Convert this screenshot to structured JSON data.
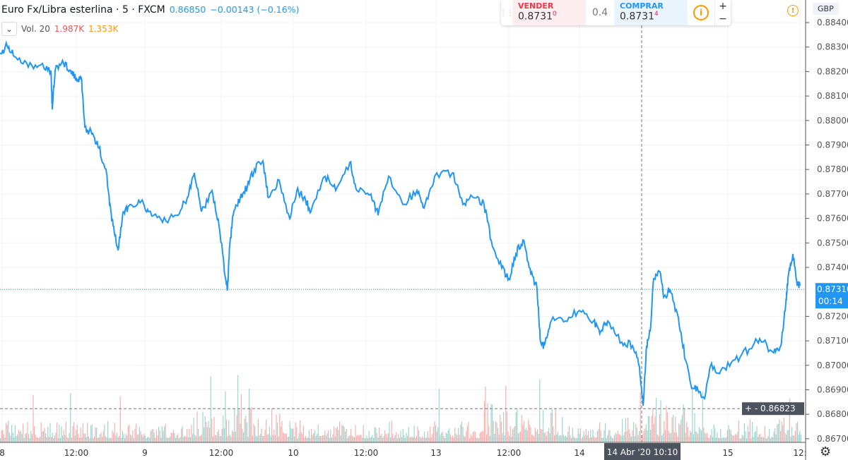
{
  "header": {
    "title": "Euro Fx/Libra esterlina · 5 · FXCM",
    "last": "0.86850",
    "change": "−0.00143 (−0.16%)"
  },
  "volume": {
    "label": "Vol. 20",
    "v1": "1.987K",
    "v2": "1.353K",
    "v1_color": "#ef5350",
    "v2_color": "#ff9800"
  },
  "trade": {
    "sell_label": "VENDER",
    "sell_price": "0.8731",
    "sell_sup": "0",
    "spread": "0.4",
    "buy_label": "COMPRAR",
    "buy_price": "0.8731",
    "buy_sup": "4",
    "plus": "+",
    "minus": "−"
  },
  "currency": "GBP",
  "crosshair": {
    "price": "0.86823",
    "time": "14 Abr '20   10:10"
  },
  "last_price": {
    "price": "0.87310",
    "countdown": "00:14"
  },
  "chart_data": {
    "type": "line",
    "title": "Euro Fx/Libra esterlina · 5 · FXCM",
    "line_color": "#2196f3",
    "ylim": [
      0.8665,
      0.8849
    ],
    "yticks": [
      "0.88400",
      "0.88300",
      "0.88200",
      "0.88100",
      "0.88000",
      "0.87900",
      "0.87800",
      "0.87700",
      "0.87600",
      "0.87500",
      "0.87400",
      "0.87200",
      "0.87100",
      "0.87000",
      "0.86900",
      "0.86800",
      "0.86700"
    ],
    "xlim": [
      0,
      1140
    ],
    "xticks": [
      {
        "t": 3,
        "label": "8"
      },
      {
        "t": 108,
        "label": "12:00"
      },
      {
        "t": 205,
        "label": "9"
      },
      {
        "t": 313,
        "label": "12:00"
      },
      {
        "t": 415,
        "label": "10"
      },
      {
        "t": 518,
        "label": "12:00"
      },
      {
        "t": 617,
        "label": "13"
      },
      {
        "t": 720,
        "label": "12:00"
      },
      {
        "t": 820,
        "label": "14"
      },
      {
        "t": 1030,
        "label": "15"
      },
      {
        "t": 1132,
        "label": "12:"
      }
    ],
    "t": [
      0,
      10,
      20,
      40,
      60,
      72,
      74,
      78,
      90,
      100,
      108,
      115,
      120,
      130,
      140,
      150,
      155,
      160,
      167,
      175,
      185,
      200,
      210,
      230,
      250,
      265,
      275,
      285,
      300,
      310,
      320,
      322,
      325,
      330,
      340,
      350,
      360,
      372,
      380,
      395,
      410,
      420,
      430,
      440,
      460,
      475,
      495,
      505,
      525,
      535,
      550,
      570,
      590,
      600,
      615,
      640,
      655,
      670,
      685,
      695,
      710,
      720,
      730,
      740,
      750,
      760,
      765,
      770,
      780,
      800,
      820,
      840,
      850,
      860,
      880,
      895,
      905,
      910,
      915,
      920,
      925,
      933,
      940,
      948,
      960,
      970,
      980,
      990,
      997,
      1005,
      1020,
      1040,
      1060,
      1075,
      1095,
      1105,
      1112,
      1115,
      1122,
      1128,
      1132
    ],
    "price": [
      0.88276,
      0.88305,
      0.88262,
      0.88218,
      0.88233,
      0.88204,
      0.88045,
      0.88204,
      0.88233,
      0.88204,
      0.88175,
      0.88175,
      0.87974,
      0.87945,
      0.87887,
      0.87801,
      0.87657,
      0.8757,
      0.8747,
      0.87628,
      0.87657,
      0.87671,
      0.87628,
      0.87584,
      0.87613,
      0.87685,
      0.87786,
      0.87628,
      0.87714,
      0.8757,
      0.8734,
      0.87311,
      0.87484,
      0.87613,
      0.87685,
      0.87729,
      0.87801,
      0.87835,
      0.87685,
      0.87757,
      0.87599,
      0.87714,
      0.87685,
      0.87628,
      0.87772,
      0.87714,
      0.87829,
      0.87714,
      0.877,
      0.87613,
      0.87772,
      0.87657,
      0.87714,
      0.87642,
      0.87772,
      0.87786,
      0.87657,
      0.87685,
      0.87657,
      0.87512,
      0.87397,
      0.87354,
      0.87455,
      0.87512,
      0.87397,
      0.87311,
      0.87095,
      0.8708,
      0.87181,
      0.87181,
      0.87224,
      0.87181,
      0.87138,
      0.87181,
      0.87095,
      0.8708,
      0.86994,
      0.86835,
      0.8708,
      0.87138,
      0.87354,
      0.87383,
      0.87282,
      0.87311,
      0.87195,
      0.87022,
      0.86907,
      0.86893,
      0.86864,
      0.86994,
      0.86979,
      0.87022,
      0.87066,
      0.87109,
      0.87051,
      0.8708,
      0.87253,
      0.87354,
      0.87455,
      0.87325,
      0.87325
    ],
    "volume_colors": {
      "up": "#26a69a",
      "down": "#ef5350"
    }
  }
}
